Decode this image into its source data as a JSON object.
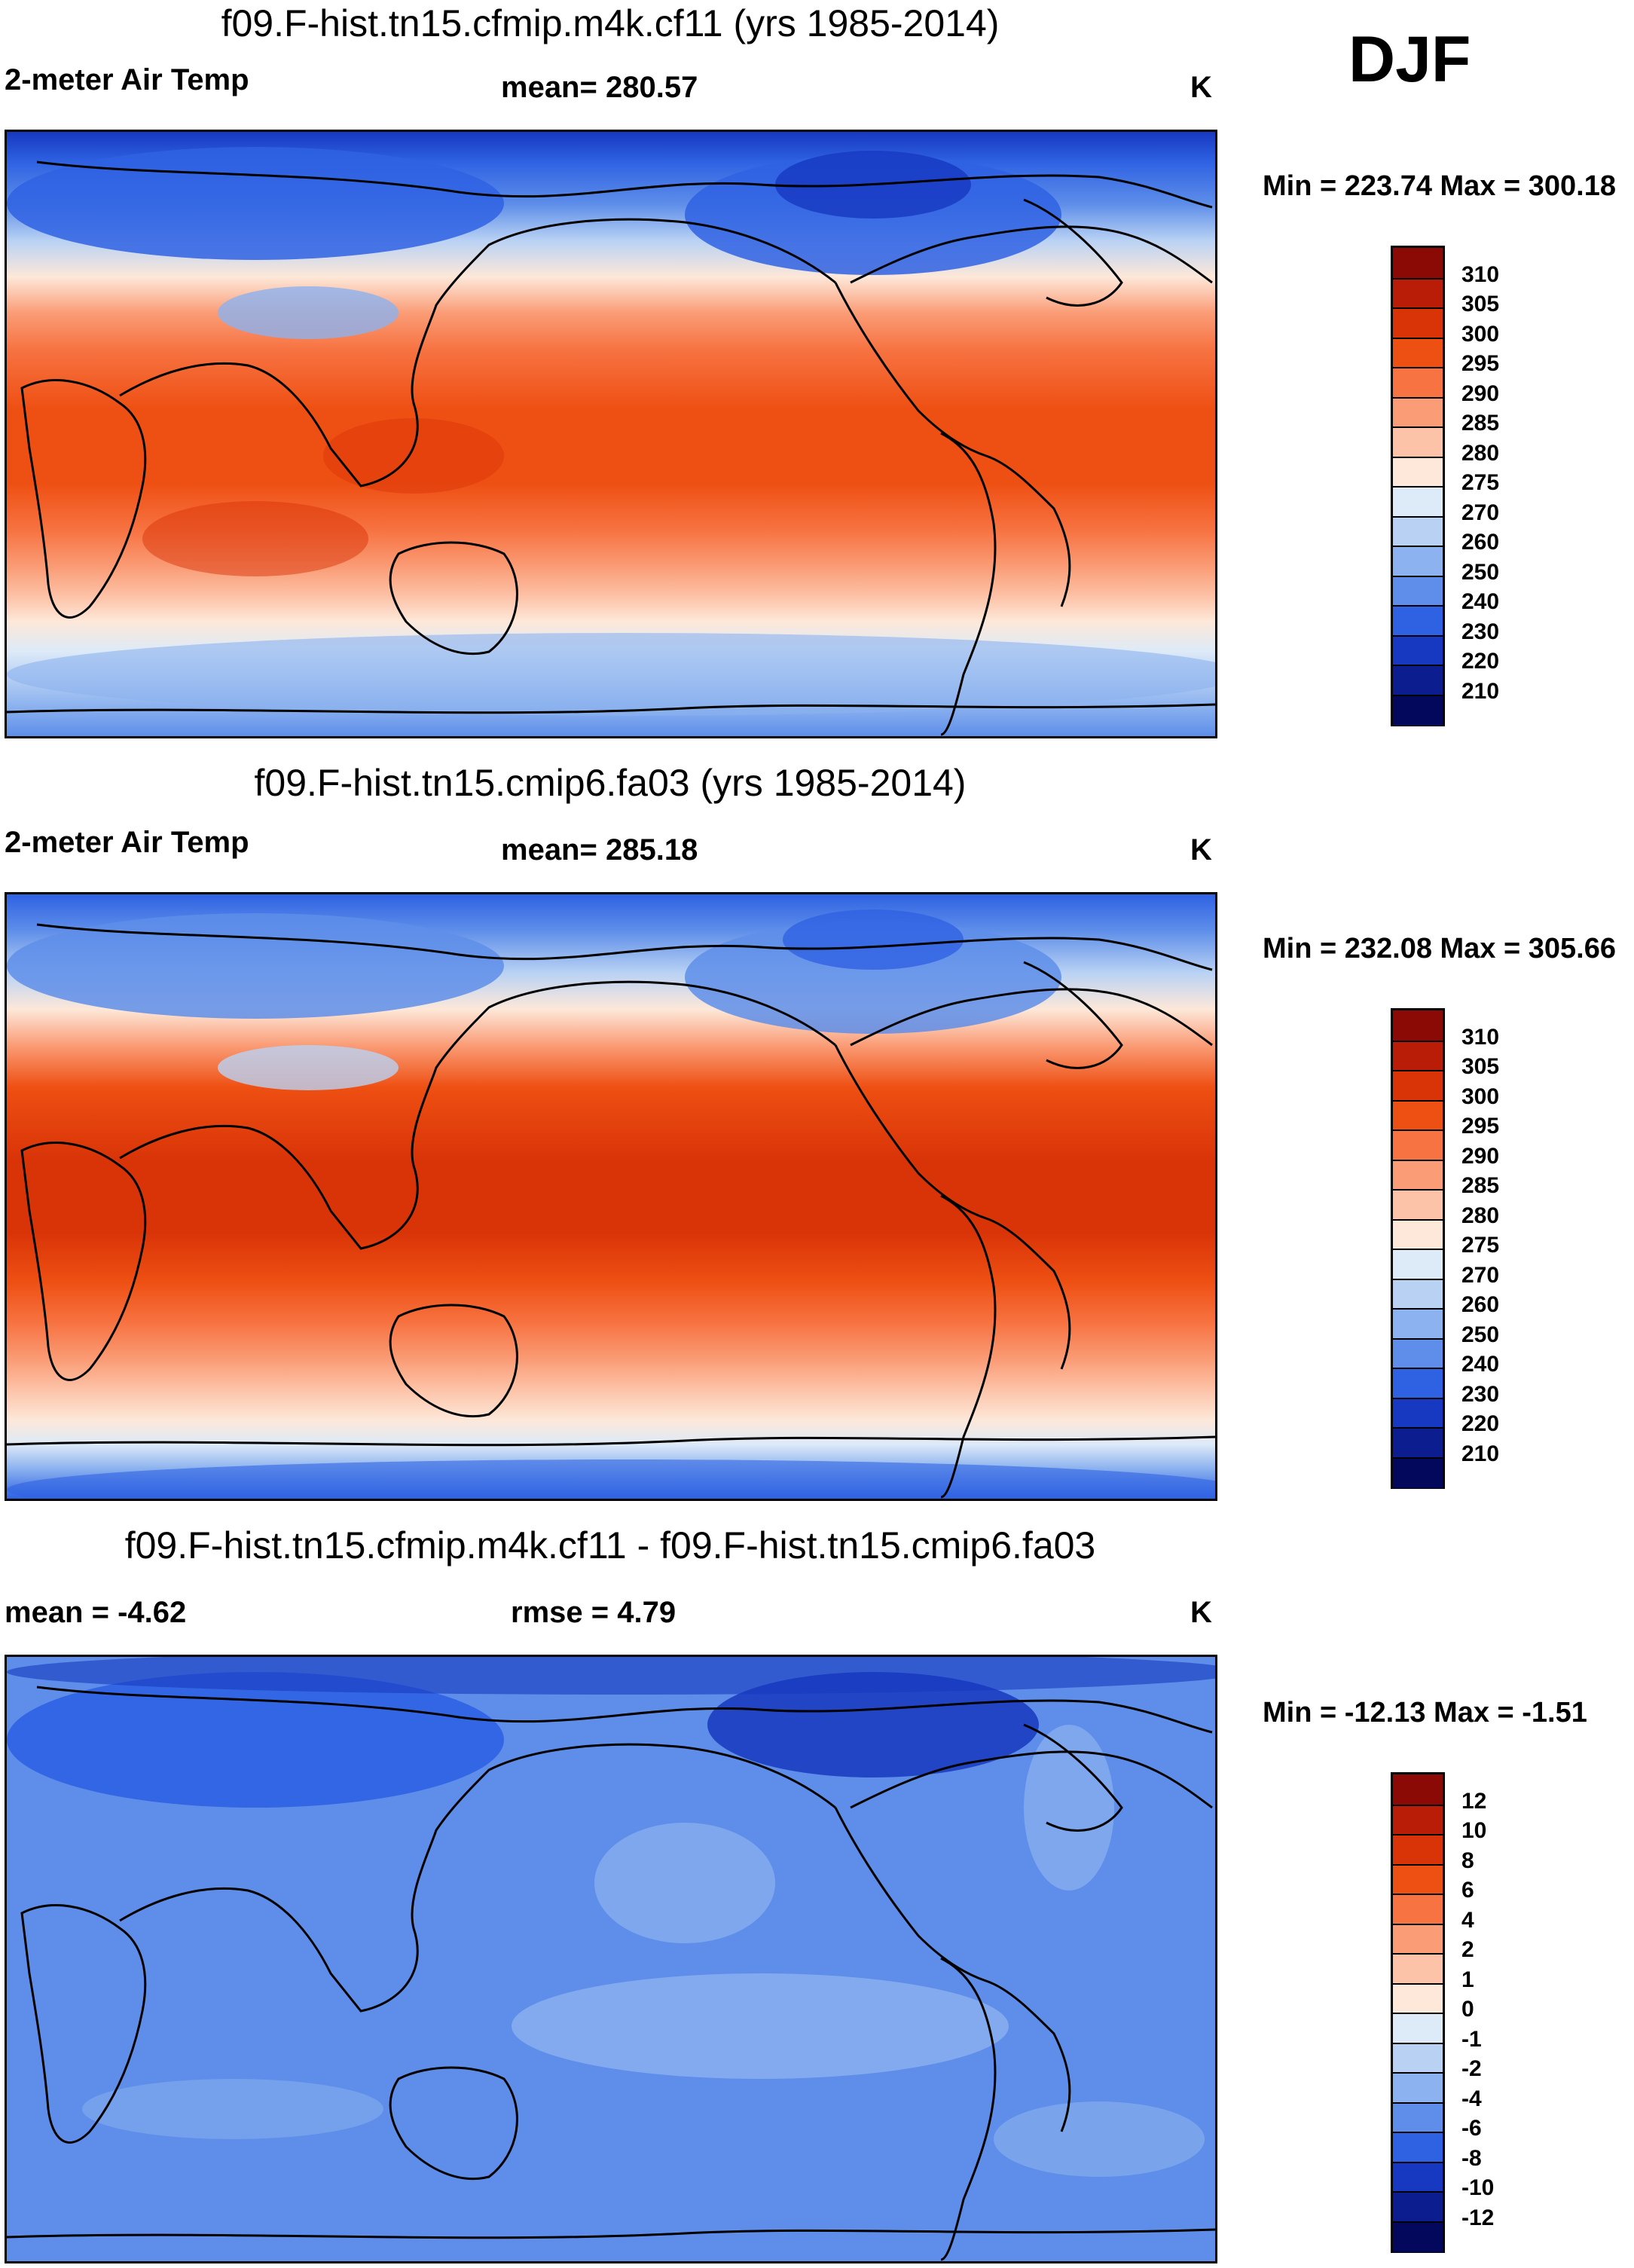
{
  "season": "DJF",
  "panels": [
    {
      "title": "f09.F-hist.tn15.cfmip.m4k.cf11 (yrs 1985-2014)",
      "variable": "2-meter Air Temp",
      "stat": "mean= 280.57",
      "units": "K",
      "minmax": "Min = 223.74 Max = 300.18",
      "map": "temp"
    },
    {
      "title": "f09.F-hist.tn15.cmip6.fa03 (yrs 1985-2014)",
      "variable": "2-meter Air Temp",
      "stat": "mean= 285.18",
      "units": "K",
      "minmax": "Min = 232.08 Max = 305.66",
      "map": "temp2"
    },
    {
      "title": "f09.F-hist.tn15.cfmip.m4k.cf11 - f09.F-hist.tn15.cmip6.fa03",
      "variable": "mean =  -4.62",
      "stat": "rmse =   4.79",
      "units": "K",
      "minmax": "Min = -12.13 Max =  -1.51",
      "map": "diff"
    }
  ],
  "colorbars": [
    {
      "labels": [
        "310",
        "305",
        "300",
        "295",
        "290",
        "285",
        "280",
        "275",
        "270",
        "260",
        "250",
        "240",
        "230",
        "220",
        "210"
      ],
      "colors": [
        "#8c0a06",
        "#b91c07",
        "#d93408",
        "#ee4f12",
        "#f77342",
        "#fa9c76",
        "#fdc3a8",
        "#fde8d9",
        "#ddeaf8",
        "#b9d2f4",
        "#8cb2ef",
        "#5e8ee9",
        "#2f62e3",
        "#1738c0",
        "#0b1d8f",
        "#03085d"
      ]
    },
    {
      "labels": [
        "310",
        "305",
        "300",
        "295",
        "290",
        "285",
        "280",
        "275",
        "270",
        "260",
        "250",
        "240",
        "230",
        "220",
        "210"
      ],
      "colors": [
        "#8c0a06",
        "#b91c07",
        "#d93408",
        "#ee4f12",
        "#f77342",
        "#fa9c76",
        "#fdc3a8",
        "#fde8d9",
        "#ddeaf8",
        "#b9d2f4",
        "#8cb2ef",
        "#5e8ee9",
        "#2f62e3",
        "#1738c0",
        "#0b1d8f",
        "#03085d"
      ]
    },
    {
      "labels": [
        "12",
        "10",
        "8",
        "6",
        "4",
        "2",
        "1",
        "0",
        "-1",
        "-2",
        "-4",
        "-6",
        "-8",
        "-10",
        "-12"
      ],
      "colors": [
        "#8c0a06",
        "#b91c07",
        "#d93408",
        "#ee4f12",
        "#f77342",
        "#fa9c76",
        "#fdc3a8",
        "#fde8d9",
        "#ddeaf8",
        "#b9d2f4",
        "#8cb2ef",
        "#5e8ee9",
        "#2f62e3",
        "#1738c0",
        "#0b1d8f",
        "#03085d"
      ]
    }
  ]
}
